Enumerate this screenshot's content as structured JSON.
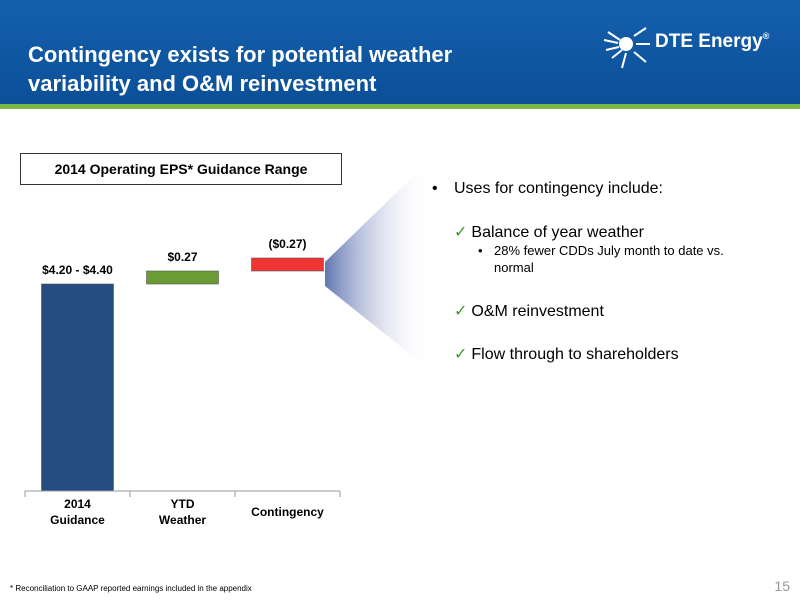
{
  "header": {
    "title": "Contingency exists for potential weather\nvariability and O&M reinvestment",
    "logo_text": "DTE Energy",
    "logo_registered": "®"
  },
  "chart_title": "2014 Operating EPS* Guidance Range",
  "chart_data": {
    "type": "bar",
    "categories": [
      "2014\nGuidance",
      "YTD\nWeather",
      "Contingency"
    ],
    "values": [
      4.3,
      0.27,
      -0.27
    ],
    "data_labels": [
      "$4.20 - $4.40",
      "$0.27",
      "($0.27)"
    ],
    "colors": [
      "#264d82",
      "#6a9b35",
      "#ef3434"
    ],
    "title": "2014 Operating EPS* Guidance Range",
    "xlabel": "",
    "ylabel": "",
    "grid": false,
    "legend": "none"
  },
  "bullets": {
    "main": "Uses for contingency include:",
    "items": [
      "Balance of year weather",
      "O&M reinvestment",
      "Flow through to shareholders"
    ],
    "sub": "28% fewer CDDs July month to date vs. normal"
  },
  "footnote": "*  Reconciliation to GAAP reported earnings included in the appendix",
  "page_number": "15",
  "colors": {
    "header": "#0b4f98",
    "header_accent": "#7ab648",
    "check": "#3a9a2a"
  }
}
